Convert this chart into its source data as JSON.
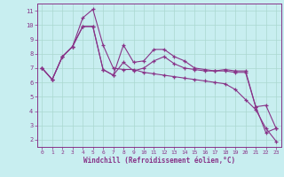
{
  "xlabel": "Windchill (Refroidissement éolien,°C)",
  "bg_color": "#c8eef0",
  "line_color": "#883388",
  "xlim": [
    -0.5,
    23.5
  ],
  "ylim": [
    1.5,
    11.5
  ],
  "xticks": [
    0,
    1,
    2,
    3,
    4,
    5,
    6,
    7,
    8,
    9,
    10,
    11,
    12,
    13,
    14,
    15,
    16,
    17,
    18,
    19,
    20,
    21,
    22,
    23
  ],
  "yticks": [
    2,
    3,
    4,
    5,
    6,
    7,
    8,
    9,
    10,
    11
  ],
  "lines": [
    [
      7.0,
      6.2,
      7.8,
      8.5,
      9.9,
      9.9,
      6.9,
      6.5,
      8.6,
      7.4,
      7.5,
      8.3,
      8.3,
      7.8,
      7.5,
      7.0,
      6.9,
      6.8,
      6.9,
      6.8,
      6.8,
      4.3,
      4.4,
      2.8
    ],
    [
      7.0,
      6.2,
      7.8,
      8.5,
      10.5,
      11.1,
      8.6,
      7.0,
      6.9,
      6.9,
      6.7,
      6.6,
      6.5,
      6.4,
      6.3,
      6.2,
      6.1,
      6.0,
      5.9,
      5.5,
      4.8,
      4.1,
      2.8,
      1.9
    ],
    [
      7.0,
      6.2,
      7.8,
      8.5,
      9.9,
      9.9,
      6.9,
      6.5,
      7.4,
      6.8,
      7.0,
      7.5,
      7.8,
      7.3,
      7.0,
      6.9,
      6.8,
      6.8,
      6.8,
      6.7,
      6.7,
      4.3,
      2.5,
      2.8
    ]
  ]
}
